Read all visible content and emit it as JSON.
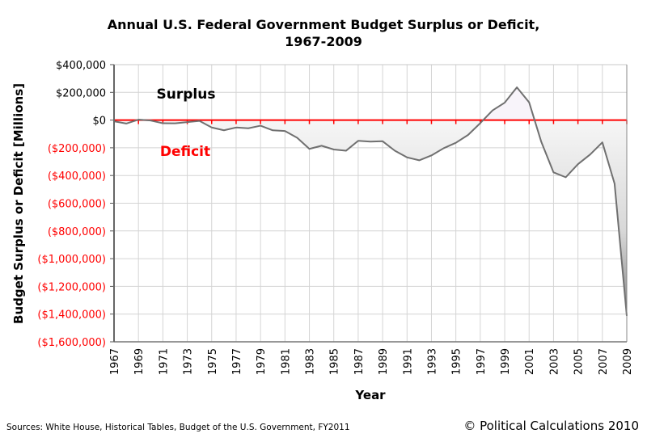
{
  "chart_data": {
    "type": "area",
    "title": "Annual U.S. Federal Government Budget Surplus or Deficit,",
    "subtitle": "1967-2009",
    "xlabel": "Year",
    "ylabel": "Budget Surplus or Deficit [Millions]",
    "ylim": [
      -1600000,
      400000
    ],
    "xlim": [
      1967,
      2009
    ],
    "grid": true,
    "legend": "none",
    "zero_line_color": "#ff0000",
    "positive_tick_color": "#000000",
    "negative_tick_color": "#ff0000",
    "line_color": "#707070",
    "y_ticks": [
      400000,
      200000,
      0,
      -200000,
      -400000,
      -600000,
      -800000,
      -1000000,
      -1200000,
      -1400000,
      -1600000
    ],
    "y_tick_labels": [
      "$400,000",
      "$200,000",
      "$0",
      "($200,000)",
      "($400,000)",
      "($600,000)",
      "($800,000)",
      "($1,000,000)",
      "($1,200,000)",
      "($1,400,000)",
      "($1,600,000)"
    ],
    "x_tick_labels": [
      "1967",
      "1969",
      "1971",
      "1973",
      "1975",
      "1977",
      "1979",
      "1981",
      "1983",
      "1985",
      "1987",
      "1989",
      "1991",
      "1993",
      "1995",
      "1997",
      "1999",
      "2001",
      "2003",
      "2005",
      "2007",
      "2009"
    ],
    "x": [
      1967,
      1968,
      1969,
      1970,
      1971,
      1972,
      1973,
      1974,
      1975,
      1976,
      1977,
      1978,
      1979,
      1980,
      1981,
      1982,
      1983,
      1984,
      1985,
      1986,
      1987,
      1988,
      1989,
      1990,
      1991,
      1992,
      1993,
      1994,
      1995,
      1996,
      1997,
      1998,
      1999,
      2000,
      2001,
      2002,
      2003,
      2004,
      2005,
      2006,
      2007,
      2008,
      2009
    ],
    "series": [
      {
        "name": "Budget Surplus or Deficit",
        "values": [
          -8643,
          -25161,
          3242,
          -2842,
          -23033,
          -23373,
          -14908,
          -6135,
          -53242,
          -73732,
          -53659,
          -59185,
          -40726,
          -73830,
          -78968,
          -127977,
          -207802,
          -185367,
          -212308,
          -221227,
          -149730,
          -155178,
          -152639,
          -221036,
          -269238,
          -290321,
          -255051,
          -203186,
          -163952,
          -107431,
          -21884,
          69270,
          125610,
          236241,
          128236,
          -157758,
          -377585,
          -412727,
          -318346,
          -248181,
          -160701,
          -458553,
          -1412686
        ]
      }
    ],
    "annotations": [
      {
        "text": "Surplus",
        "color": "#000000"
      },
      {
        "text": "Deficit",
        "color": "#ff0000"
      }
    ]
  },
  "footer": {
    "sources": "Sources: White House, Historical Tables, Budget of the U.S. Government, FY2011",
    "copyright": "© Political Calculations 2010"
  }
}
